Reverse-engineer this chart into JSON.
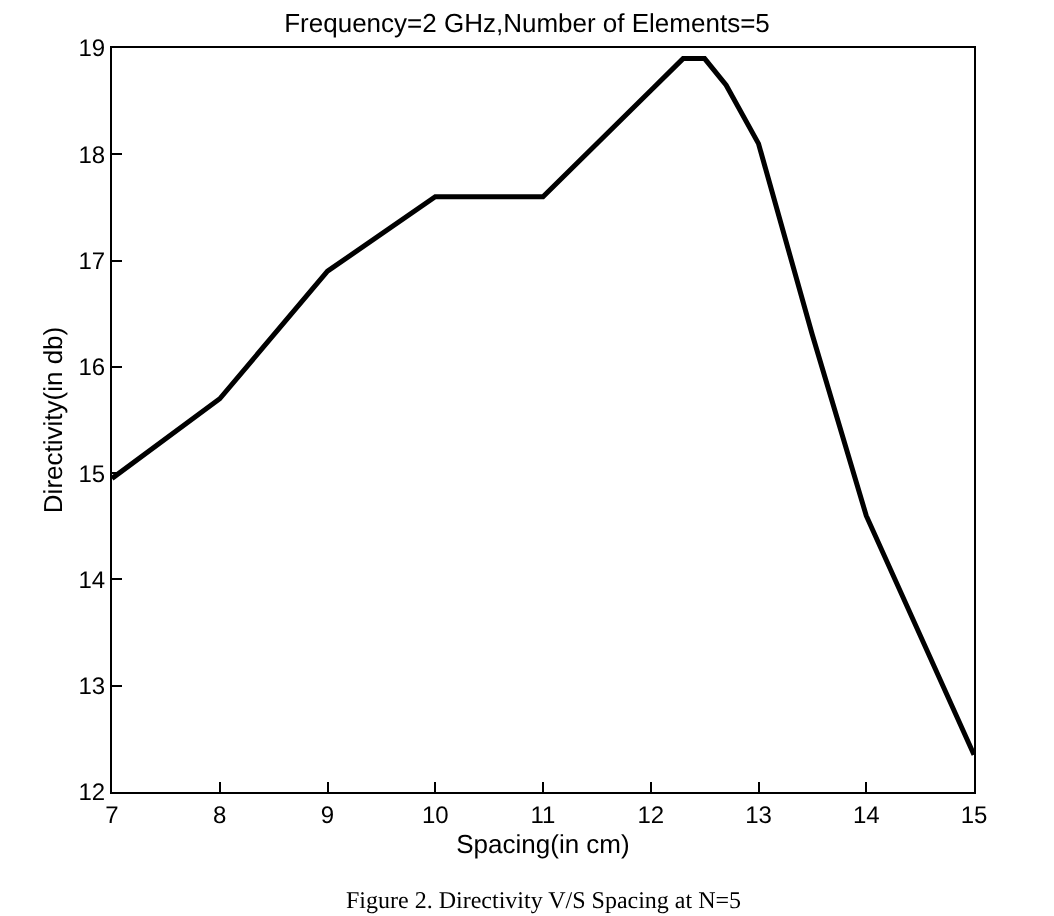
{
  "chart_data": {
    "type": "line",
    "title": "Frequency=2 GHz,Number of Elements=5",
    "xlabel": "Spacing(in cm)",
    "ylabel": "Directivity(in db)",
    "annotations": [
      "Figure 2. Directivity V/S Spacing at N=5"
    ],
    "x": [
      7,
      8,
      9,
      10,
      11,
      12,
      12.3,
      12.5,
      12.7,
      13,
      13.5,
      14,
      15
    ],
    "series": [
      {
        "color": "#000000",
        "values": [
          14.95,
          15.7,
          16.9,
          17.6,
          17.6,
          18.6,
          18.9,
          18.9,
          18.65,
          18.1,
          16.3,
          14.6,
          12.35
        ]
      }
    ],
    "xlim": [
      7,
      15
    ],
    "xticks": [
      7,
      8,
      9,
      10,
      11,
      12,
      13,
      14,
      15
    ],
    "ylim": [
      12,
      19
    ],
    "yticks": [
      12,
      13,
      14,
      15,
      16,
      17,
      18,
      19
    ],
    "legend": false,
    "marker": "none",
    "line_style": "solid"
  }
}
